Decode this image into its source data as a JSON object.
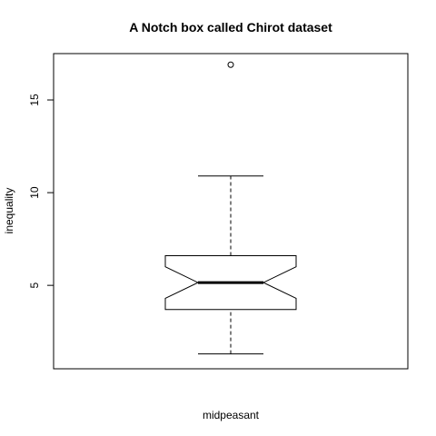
{
  "chart_data": {
    "type": "boxplot",
    "title": "A Notch box called Chirot dataset",
    "xlabel": "midpeasant",
    "ylabel": "inequality",
    "ylim": [
      0.5,
      17.5
    ],
    "yticks": [
      5,
      10,
      15
    ],
    "ytick_labels": [
      "5",
      "10",
      "15"
    ],
    "notch": true,
    "series": [
      {
        "name": "midpeasant",
        "whisker_low": 1.3,
        "q1": 3.7,
        "median": 5.15,
        "q3": 6.6,
        "whisker_high": 10.9,
        "notch_low": 4.3,
        "notch_high": 6.0,
        "outliers": [
          16.9
        ]
      }
    ]
  }
}
